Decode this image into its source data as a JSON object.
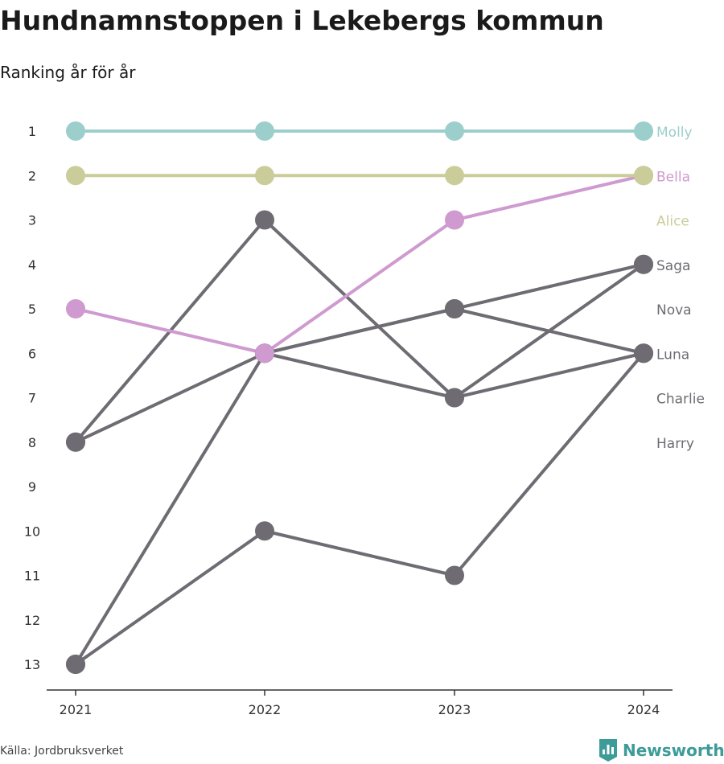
{
  "header": {
    "title": "Hundnamnstoppen i Lekebergs kommun",
    "subtitle": "Ranking år för år"
  },
  "footer": {
    "source": "Källa: Jordbruksverket",
    "brand": "Newsworthy",
    "brand_icon": "newsworthy-logo-icon"
  },
  "colors": {
    "molly": "#9ccfcc",
    "alice": "#cacd9a",
    "bella": "#cf9acf",
    "gray": "#6e6c72",
    "axis": "#333333",
    "brand": "#3d9b98"
  },
  "chart_data": {
    "type": "line",
    "x": [
      "2021",
      "2022",
      "2023",
      "2024"
    ],
    "y_ticks": [
      "1",
      "2",
      "3",
      "4",
      "5",
      "6",
      "7",
      "8",
      "9",
      "10",
      "11",
      "12",
      "13"
    ],
    "ylim": [
      1,
      13
    ],
    "y_reversed": true,
    "grid": false,
    "series": [
      {
        "name": "Molly",
        "color": "#9ccfcc",
        "values": [
          1,
          1,
          1,
          1
        ]
      },
      {
        "name": "Bella",
        "color": "#cf9acf",
        "values": [
          5,
          6,
          3,
          2
        ]
      },
      {
        "name": "Alice",
        "color": "#cacd9a",
        "values": [
          2,
          2,
          2,
          2
        ]
      },
      {
        "name": "Saga",
        "color": "#6e6c72",
        "values": [
          13,
          6,
          7,
          4
        ]
      },
      {
        "name": "Nova",
        "color": "#6e6c72",
        "values": [
          8,
          6,
          5,
          4
        ]
      },
      {
        "name": "Luna",
        "color": "#6e6c72",
        "values": [
          8,
          3,
          7,
          6
        ]
      },
      {
        "name": "Charlie",
        "color": "#6e6c72",
        "values": [
          13,
          10,
          11,
          6
        ]
      },
      {
        "name": "Harry",
        "color": "#6e6c72",
        "values": [
          null,
          6,
          5,
          6
        ]
      }
    ],
    "end_labels": [
      {
        "name": "Molly",
        "rank": 1,
        "color": "#9ccfcc"
      },
      {
        "name": "Bella",
        "rank": 2,
        "color": "#cf9acf"
      },
      {
        "name": "Alice",
        "rank": 3,
        "color": "#cacd9a"
      },
      {
        "name": "Saga",
        "rank": 4,
        "color": "#6e6c72"
      },
      {
        "name": "Nova",
        "rank": 5,
        "color": "#6e6c72"
      },
      {
        "name": "Luna",
        "rank": 6,
        "color": "#6e6c72"
      },
      {
        "name": "Charlie",
        "rank": 7,
        "color": "#6e6c72"
      },
      {
        "name": "Harry",
        "rank": 8,
        "color": "#6e6c72"
      }
    ]
  }
}
